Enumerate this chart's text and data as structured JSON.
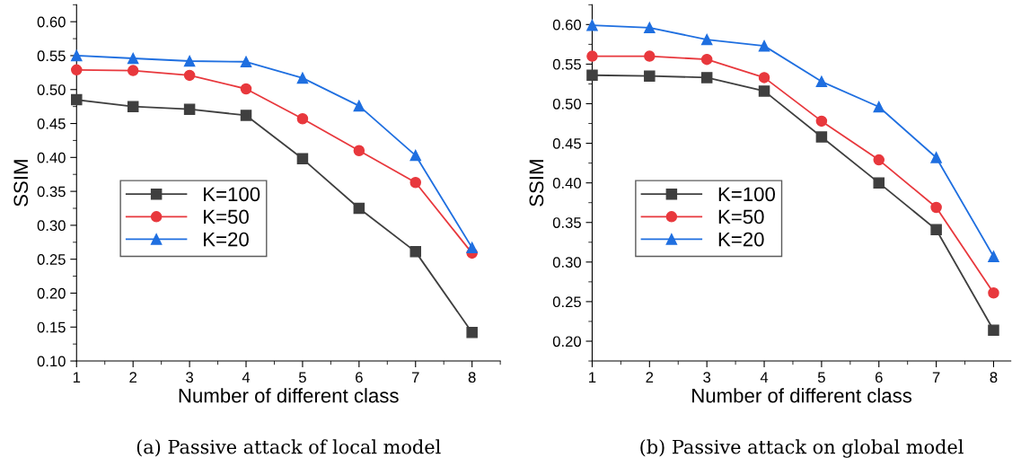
{
  "chart_data": [
    {
      "type": "line",
      "xlabel": "Number of different class",
      "ylabel": "SSIM",
      "annotations": [
        "(a) Passive attack of local model"
      ],
      "x": [
        1,
        2,
        3,
        4,
        5,
        6,
        7,
        8
      ],
      "xlim": [
        1,
        8.5
      ],
      "xticks": [
        1,
        2,
        3,
        4,
        5,
        6,
        7,
        8
      ],
      "ylim": [
        0.1,
        0.625
      ],
      "yticks": [
        {
          "value": 0.1,
          "label": "0.10"
        },
        {
          "value": 0.15,
          "label": "0.15"
        },
        {
          "value": 0.2,
          "label": "0.20"
        },
        {
          "value": 0.25,
          "label": "0.25"
        },
        {
          "value": 0.3,
          "label": "0.30"
        },
        {
          "value": 0.35,
          "label": "0.35"
        },
        {
          "value": 0.4,
          "label": "0.40"
        },
        {
          "value": 0.45,
          "label": "0.45"
        },
        {
          "value": 0.5,
          "label": "0.50"
        },
        {
          "value": 0.55,
          "label": "0.55"
        },
        {
          "value": 0.6,
          "label": "0.60"
        }
      ],
      "grid": false,
      "legend": "center left",
      "series": [
        {
          "name": "K=100",
          "color": "#3f3f3f",
          "marker": "square",
          "values": [
            0.485,
            0.475,
            0.471,
            0.462,
            0.398,
            0.325,
            0.261,
            0.142
          ]
        },
        {
          "name": "K=50",
          "color": "#e8383d",
          "marker": "circle",
          "values": [
            0.529,
            0.528,
            0.521,
            0.501,
            0.457,
            0.41,
            0.363,
            0.259
          ]
        },
        {
          "name": "K=20",
          "color": "#1f6fe0",
          "marker": "triangle",
          "values": [
            0.55,
            0.546,
            0.542,
            0.541,
            0.517,
            0.476,
            0.403,
            0.267
          ]
        }
      ]
    },
    {
      "type": "line",
      "xlabel": "Number of different class",
      "ylabel": "SSIM",
      "annotations": [
        "(b) Passive attack on global model"
      ],
      "x": [
        1,
        2,
        3,
        4,
        5,
        6,
        7,
        8
      ],
      "xlim": [
        1,
        8.3
      ],
      "xticks": [
        1,
        2,
        3,
        4,
        5,
        6,
        7,
        8
      ],
      "ylim": [
        0.175,
        0.625
      ],
      "yticks": [
        {
          "value": 0.2,
          "label": "0.20"
        },
        {
          "value": 0.25,
          "label": "0.25"
        },
        {
          "value": 0.3,
          "label": "0.30"
        },
        {
          "value": 0.35,
          "label": "0.35"
        },
        {
          "value": 0.4,
          "label": "0.40"
        },
        {
          "value": 0.45,
          "label": "0.45"
        },
        {
          "value": 0.5,
          "label": "0.50"
        },
        {
          "value": 0.55,
          "label": "0.55"
        },
        {
          "value": 0.6,
          "label": "0.60"
        }
      ],
      "grid": false,
      "legend": "center left",
      "series": [
        {
          "name": "K=100",
          "color": "#3f3f3f",
          "marker": "square",
          "values": [
            0.536,
            0.535,
            0.533,
            0.516,
            0.458,
            0.4,
            0.341,
            0.214
          ]
        },
        {
          "name": "K=50",
          "color": "#e8383d",
          "marker": "circle",
          "values": [
            0.56,
            0.56,
            0.556,
            0.533,
            0.478,
            0.429,
            0.369,
            0.261
          ]
        },
        {
          "name": "K=20",
          "color": "#1f6fe0",
          "marker": "triangle",
          "values": [
            0.599,
            0.596,
            0.581,
            0.573,
            0.528,
            0.496,
            0.432,
            0.307
          ]
        }
      ]
    }
  ]
}
